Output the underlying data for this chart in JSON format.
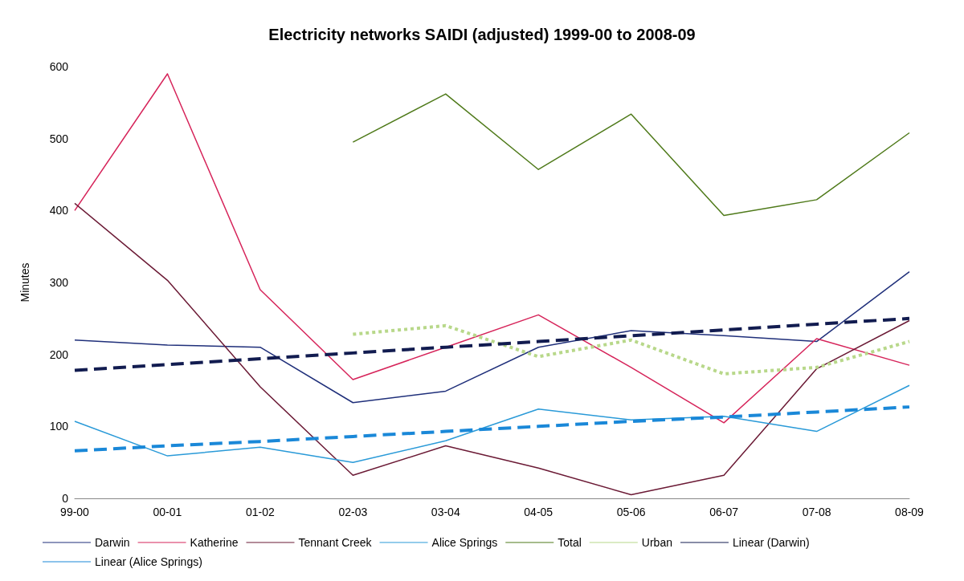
{
  "chart_data": {
    "type": "line",
    "title": "Electricity networks SAIDI (adjusted) 1999-00 to 2008-09",
    "ylabel": "Minutes",
    "categories": [
      "99-00",
      "00-01",
      "01-02",
      "02-03",
      "03-04",
      "04-05",
      "05-06",
      "06-07",
      "07-08",
      "08-09"
    ],
    "ylim": [
      0,
      600
    ],
    "yticks": [
      0,
      100,
      200,
      300,
      400,
      500,
      600
    ],
    "grid": false,
    "legend": "bottom",
    "marker": "none",
    "series": [
      {
        "name": "Darwin",
        "color": "#1f2f7a",
        "line_style": "solid",
        "values": [
          220,
          213,
          210,
          133,
          149,
          210,
          233,
          226,
          218,
          315
        ]
      },
      {
        "name": "Katherine",
        "color": "#d6245a",
        "line_style": "solid",
        "values": [
          400,
          590,
          290,
          165,
          210,
          255,
          182,
          105,
          222,
          185
        ]
      },
      {
        "name": "Tennant Creek",
        "color": "#6b1a35",
        "line_style": "solid",
        "values": [
          410,
          303,
          155,
          32,
          73,
          42,
          5,
          32,
          180,
          247
        ]
      },
      {
        "name": "Alice Springs",
        "color": "#2a9ad8",
        "line_style": "solid",
        "values": [
          107,
          59,
          71,
          50,
          80,
          124,
          109,
          114,
          93,
          157
        ]
      },
      {
        "name": "Total",
        "color": "#4f7a1a",
        "line_style": "solid",
        "values": [
          null,
          null,
          null,
          495,
          562,
          457,
          534,
          393,
          415,
          508
        ]
      },
      {
        "name": "Urban",
        "color": "#b8d88a",
        "line_style": "dotted",
        "values": [
          null,
          null,
          null,
          228,
          240,
          197,
          220,
          173,
          182,
          218
        ]
      },
      {
        "name": "Linear (Darwin)",
        "color": "#121c50",
        "line_style": "dashed",
        "values": [
          178,
          186,
          194,
          202,
          210,
          218,
          226,
          234,
          242,
          250
        ]
      },
      {
        "name": "Linear (Alice Springs)",
        "color": "#1a88d8",
        "line_style": "dashed",
        "values": [
          66,
          73,
          79,
          86,
          93,
          100,
          107,
          113,
          120,
          127
        ]
      }
    ]
  }
}
